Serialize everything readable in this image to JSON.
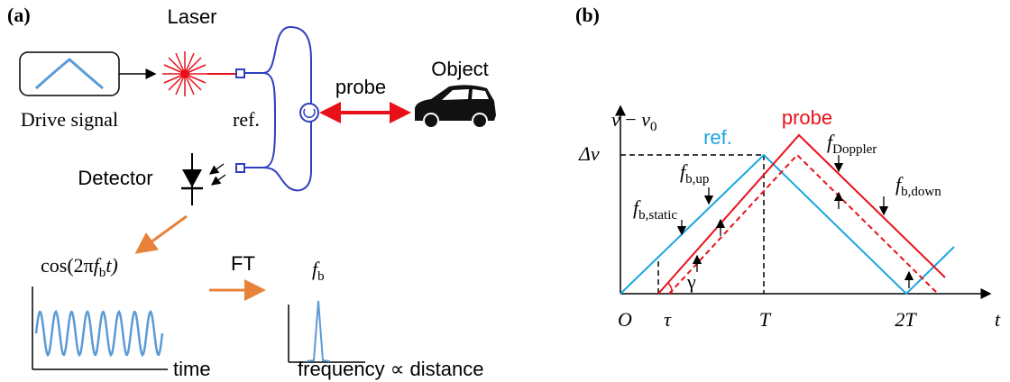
{
  "panel_a": {
    "label": "(a)",
    "laser": "Laser",
    "drive_signal": "Drive signal",
    "ref": "ref.",
    "probe": "probe",
    "object": "Object",
    "detector": "Detector",
    "signal_formula": [
      "cos(2π",
      "f",
      "b",
      "t)"
    ],
    "ft": "FT",
    "peak_label": [
      "f",
      "b"
    ],
    "time_axis": "time",
    "frequency_axis": "frequency ∝  distance"
  },
  "panel_b": {
    "label": "(b)",
    "y_axis": [
      "v",
      " − ",
      "v",
      "0"
    ],
    "delta_v": "Δv",
    "ref": "ref.",
    "probe": "probe",
    "f_doppler": [
      "f",
      "Doppler"
    ],
    "f_b_up": [
      "f",
      "b,up"
    ],
    "f_b_static": [
      "f",
      "b,static"
    ],
    "f_b_down": [
      "f",
      "b,down"
    ],
    "gamma": "γ",
    "origin": "O",
    "tau": "τ",
    "period": "T",
    "double_period": "2T",
    "time_axis": "t"
  }
}
